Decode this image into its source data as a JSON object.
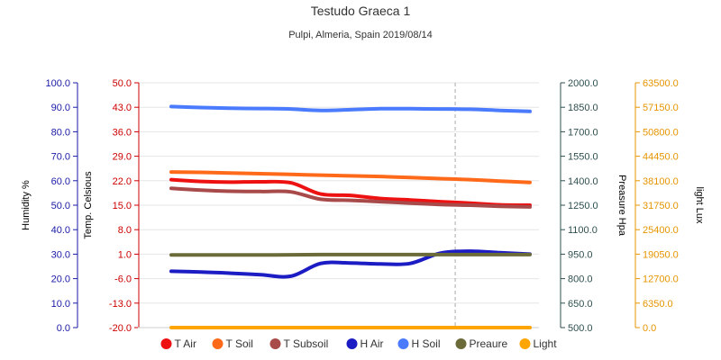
{
  "chart_data": {
    "type": "line",
    "title": "Testudo Graeca 1",
    "subtitle": "Pulpi, Almeria, Spain 2019/08/14",
    "grid": true,
    "legend_position": "bottom-center",
    "crosshair": true,
    "axes": [
      {
        "id": "humidity",
        "label": "Humidity %",
        "color": "#1a1aa6",
        "range": [
          0,
          100
        ],
        "ticks": [
          "0.0",
          "10.0",
          "20.0",
          "30.0",
          "40.0",
          "50.0",
          "60.0",
          "70.0",
          "80.0",
          "90.0",
          "100.0"
        ]
      },
      {
        "id": "temp",
        "label": "Temp. Celsious",
        "color": "#cc0000",
        "range": [
          -20,
          50
        ],
        "ticks": [
          "-20.0",
          "-13.0",
          "-6.0",
          "1.0",
          "8.0",
          "15.0",
          "22.0",
          "29.0",
          "36.0",
          "43.0",
          "50.0"
        ]
      },
      {
        "id": "pressure",
        "label": "Preasure Hpa",
        "color": "#2f4f4f",
        "range": [
          500,
          2000
        ],
        "ticks": [
          "500.0",
          "650.0",
          "800.0",
          "950.0",
          "1100.0",
          "1250.0",
          "1400.0",
          "1550.0",
          "1700.0",
          "1850.0",
          "2000.0"
        ]
      },
      {
        "id": "light",
        "label": "light Lux",
        "color": "#e69500",
        "range": [
          0,
          63500
        ],
        "ticks": [
          "0.0",
          "6350.0",
          "12700.0",
          "19050.0",
          "25400.0",
          "31750.0",
          "38100.0",
          "44450.0",
          "50800.0",
          "57150.0",
          "63500.0"
        ]
      }
    ],
    "x": [
      0,
      1,
      2,
      3,
      4,
      5,
      6,
      7,
      8,
      9,
      10,
      11,
      12
    ],
    "series": [
      {
        "name": "T Air",
        "axis": "temp",
        "color": "#ee1111",
        "values": [
          22.3,
          21.8,
          21.6,
          21.7,
          21.4,
          18.2,
          17.8,
          16.9,
          16.5,
          16.0,
          15.6,
          15.1,
          15.0
        ]
      },
      {
        "name": "T Soil",
        "axis": "temp",
        "color": "#ff6a1a",
        "values": [
          24.5,
          24.4,
          24.2,
          24.0,
          23.8,
          23.6,
          23.4,
          23.2,
          22.9,
          22.6,
          22.3,
          21.9,
          21.5
        ]
      },
      {
        "name": "T Subsoil",
        "axis": "temp",
        "color": "#a94a4a",
        "values": [
          19.8,
          19.3,
          19.0,
          18.9,
          18.8,
          16.7,
          16.4,
          16.0,
          15.6,
          15.2,
          15.0,
          14.7,
          14.5
        ]
      },
      {
        "name": "H Air",
        "axis": "humidity",
        "color": "#1c1cc4",
        "values": [
          23.0,
          22.7,
          22.2,
          21.6,
          21.0,
          26.2,
          26.4,
          26.0,
          26.2,
          30.4,
          31.2,
          30.6,
          30.0
        ]
      },
      {
        "name": "H Soil",
        "axis": "humidity",
        "color": "#4a7bff",
        "values": [
          90.3,
          89.9,
          89.6,
          89.5,
          89.3,
          88.7,
          89.0,
          89.4,
          89.4,
          89.3,
          89.2,
          88.7,
          88.3
        ]
      },
      {
        "name": "Preaure",
        "axis": "pressure",
        "color": "#6b6b3a",
        "values": [
          945,
          945,
          945,
          945,
          946,
          947,
          947,
          947,
          947,
          947,
          947,
          947,
          947
        ]
      },
      {
        "name": "Light",
        "axis": "light",
        "color": "#ffa500",
        "values": [
          0,
          0,
          0,
          0,
          0,
          0,
          0,
          0,
          0,
          0,
          0,
          0,
          0
        ]
      }
    ],
    "crosshair_x": 9.5
  }
}
